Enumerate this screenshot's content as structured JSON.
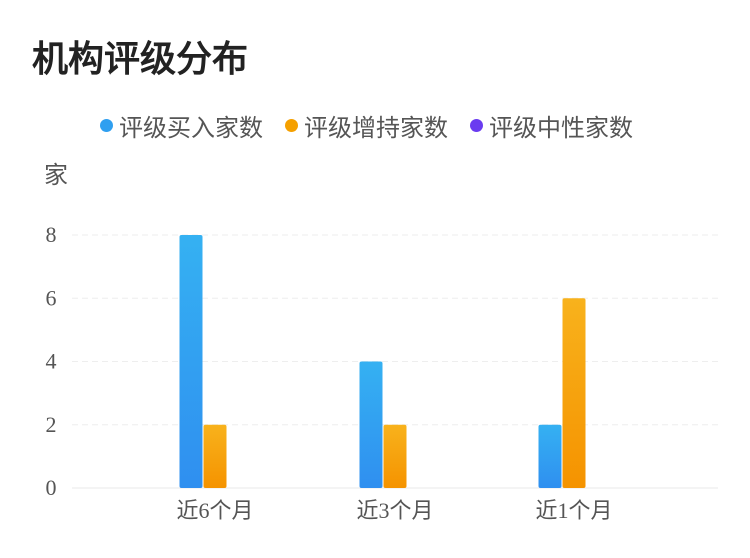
{
  "chart_data": {
    "type": "bar",
    "title": "机构评级分布",
    "ylabel": "家",
    "categories": [
      "近6个月",
      "近3个月",
      "近1个月"
    ],
    "series": [
      {
        "name": "评级买入家数",
        "values": [
          8,
          4,
          2
        ],
        "color": "#2f8ff0",
        "color_top": "#35b1f2"
      },
      {
        "name": "评级增持家数",
        "values": [
          2,
          2,
          6
        ],
        "color": "#f59300",
        "color_top": "#f8b21c"
      },
      {
        "name": "评级中性家数",
        "values": [
          0,
          0,
          0
        ],
        "color": "#6a3cf0",
        "color_top": "#7a52f2"
      }
    ],
    "yticks": [
      0,
      2,
      4,
      6,
      8
    ],
    "ylim": [
      0,
      8
    ],
    "grid": true,
    "legend_position": "top"
  }
}
